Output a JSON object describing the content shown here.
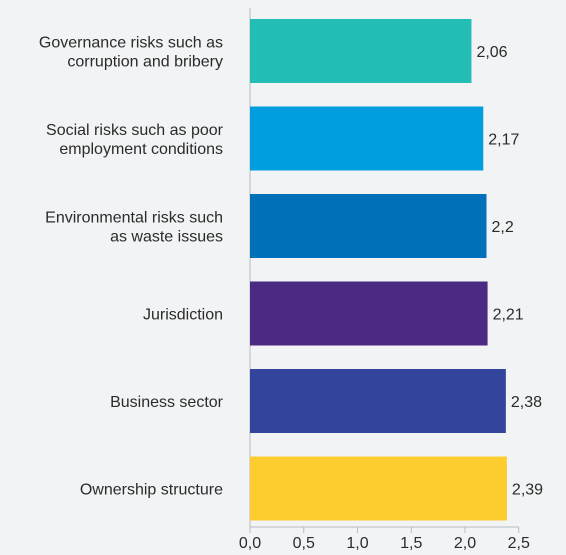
{
  "chart_data": {
    "type": "bar",
    "orientation": "horizontal",
    "categories": [
      [
        "Governance risks such as",
        "corruption and bribery"
      ],
      [
        "Social risks such as poor",
        "employment conditions"
      ],
      [
        "Environmental risks such",
        "as waste issues"
      ],
      [
        "Jurisdiction"
      ],
      [
        "Business sector"
      ],
      [
        "Ownership structure"
      ]
    ],
    "values": [
      2.06,
      2.17,
      2.2,
      2.21,
      2.38,
      2.39
    ],
    "value_labels": [
      "2,06",
      "2,17",
      "2,2",
      "2,21",
      "2,38",
      "2,39"
    ],
    "bar_colors": [
      "#22bdb5",
      "#009ede",
      "#0070b8",
      "#4b2a84",
      "#32449b",
      "#fdcd2f"
    ],
    "xlim": [
      0,
      2.5
    ],
    "x_ticks": [
      0,
      0.5,
      1.0,
      1.5,
      2.0,
      2.5
    ],
    "x_tick_labels": [
      "0,0",
      "0,5",
      "1,0",
      "1,5",
      "2,0",
      "2,5"
    ],
    "grid": false,
    "title": "",
    "xlabel": "",
    "ylabel": ""
  }
}
